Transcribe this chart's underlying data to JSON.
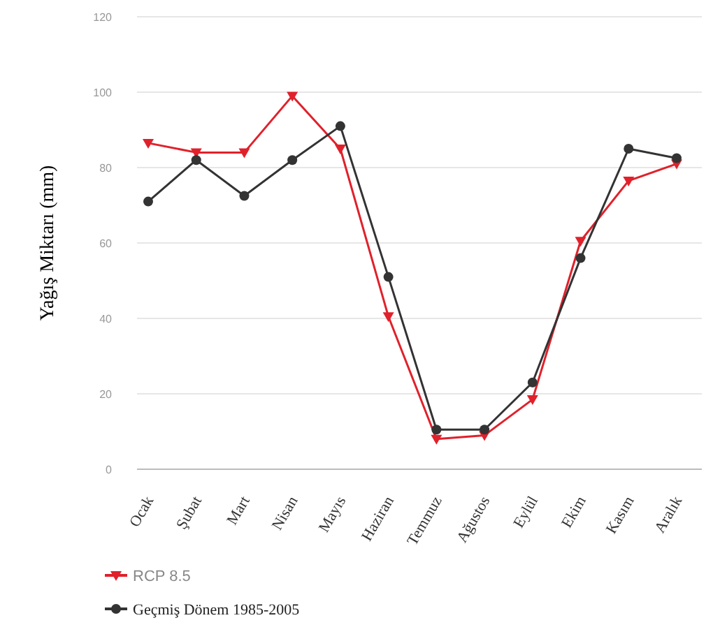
{
  "chart_data": {
    "type": "line",
    "ylabel": "Yağış Miktarı (mm)",
    "categories": [
      "Ocak",
      "Şubat",
      "Mart",
      "Nisan",
      "Mayıs",
      "Haziran",
      "Temmuz",
      "Ağustos",
      "Eylül",
      "Ekim",
      "Kasım",
      "Aralık"
    ],
    "series": [
      {
        "name": "RCP 8.5",
        "color": "#e0212b",
        "marker": "triangle",
        "values": [
          86.5,
          84,
          84,
          99,
          85,
          40.5,
          8,
          9,
          18.5,
          60.5,
          76.5,
          81
        ]
      },
      {
        "name": "Geçmiş Dönem 1985-2005",
        "color": "#333333",
        "marker": "circle",
        "values": [
          71,
          82,
          72.5,
          82,
          91,
          51,
          10.5,
          10.5,
          23,
          56,
          85,
          82.5
        ]
      }
    ],
    "ylim": [
      0,
      120
    ],
    "yticks": [
      0,
      20,
      40,
      60,
      80,
      100,
      120
    ],
    "grid": "y",
    "legend": "bottom left",
    "line_style": "solid"
  }
}
